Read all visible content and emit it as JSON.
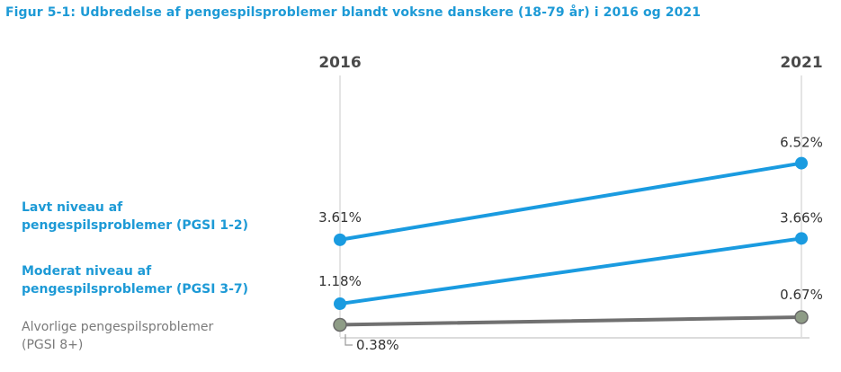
{
  "title": "Figur 5-1: Udbredelse af pengespilsproblemer blandt voksne danskere (18-79 år) i 2016 og 2021",
  "chart_data": {
    "type": "line",
    "x": [
      "2016",
      "2021"
    ],
    "series": [
      {
        "name_lines": [
          "Lavt niveau af",
          "pengespilsproblemer (PGSI 1-2)"
        ],
        "values": [
          3.61,
          6.52
        ],
        "labels": [
          "3.61%",
          "6.52%"
        ],
        "color": "#1a9be0"
      },
      {
        "name_lines": [
          "Moderat niveau af",
          "pengespilsproblemer (PGSI 3-7)"
        ],
        "values": [
          1.18,
          3.66
        ],
        "labels": [
          "1.18%",
          "3.66%"
        ],
        "color": "#1a9be0"
      },
      {
        "name_lines": [
          "Alvorlige pengespilsproblemer",
          "(PGSI 8+)"
        ],
        "values": [
          0.38,
          0.67
        ],
        "labels": [
          "0.38%",
          "0.67%"
        ],
        "color": "#707070"
      }
    ],
    "grid": false,
    "legend": "left"
  }
}
